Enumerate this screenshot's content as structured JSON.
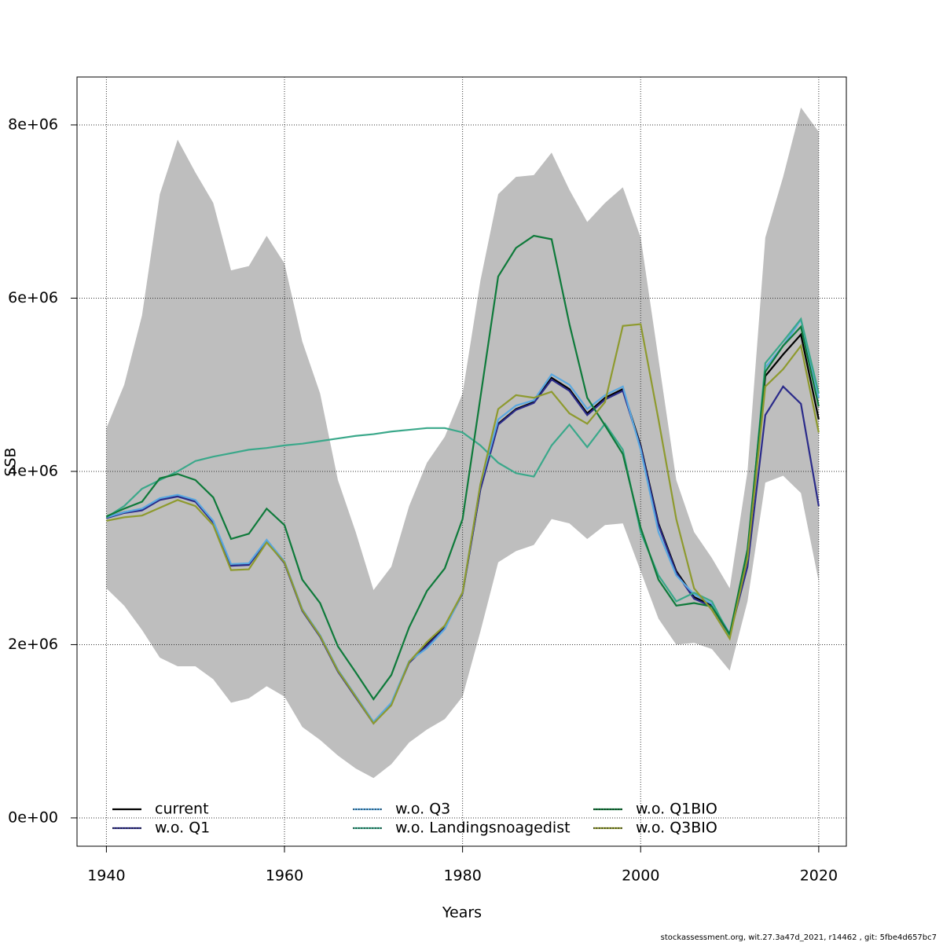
{
  "chart_data": {
    "type": "line",
    "xlabel": "Years",
    "ylabel": "SSB",
    "footer": "stockassessment.org, wit.27.3a47d_2021, r14462 , git: 5fbe4d657bc7",
    "x": [
      1940,
      1942,
      1944,
      1946,
      1948,
      1950,
      1952,
      1954,
      1956,
      1958,
      1960,
      1962,
      1964,
      1966,
      1968,
      1970,
      1972,
      1974,
      1976,
      1978,
      1980,
      1982,
      1984,
      1986,
      1988,
      1990,
      1992,
      1994,
      1996,
      1998,
      2000,
      2002,
      2004,
      2006,
      2008,
      2010,
      2012,
      2014,
      2016,
      2018,
      2020
    ],
    "xlim": [
      1936.7,
      2023.1
    ],
    "xticks": [
      1940,
      1960,
      1980,
      2000,
      2020
    ],
    "ylim": [
      -327000,
      8553000
    ],
    "yticks": [
      {
        "value": 0,
        "label": "0e+00"
      },
      {
        "value": 2000000,
        "label": "2e+06"
      },
      {
        "value": 4000000,
        "label": "4e+06"
      },
      {
        "value": 6000000,
        "label": "6e+06"
      },
      {
        "value": 8000000,
        "label": "8e+06"
      }
    ],
    "grid": true,
    "band": {
      "color": "#bebebe",
      "upper": [
        4500000.0,
        5000000.0,
        5800000.0,
        7200000.0,
        7830000.0,
        7450000.0,
        7100000.0,
        6320000.0,
        6370000.0,
        6720000.0,
        6400000.0,
        5500000.0,
        4900000.0,
        3900000.0,
        3300000.0,
        2630000.0,
        2900000.0,
        3600000.0,
        4100000.0,
        4400000.0,
        4900000.0,
        6200000.0,
        7200000.0,
        7400000.0,
        7420000.0,
        7680000.0,
        7250000.0,
        6880000.0,
        7100000.0,
        7280000.0,
        6700000.0,
        5300000.0,
        3900000.0,
        3300000.0,
        3000000.0,
        2650000.0,
        4000000.0,
        6700000.0,
        7400000.0,
        8200000.0,
        7920000.0
      ],
      "lower": [
        2650000.0,
        2450000.0,
        2170000.0,
        1850000.0,
        1750000.0,
        1750000.0,
        1600000.0,
        1330000.0,
        1380000.0,
        1520000.0,
        1400000.0,
        1050000.0,
        900000.0,
        720000.0,
        570000.0,
        460000.0,
        620000.0,
        870000.0,
        1020000.0,
        1140000.0,
        1400000.0,
        2150000.0,
        2950000.0,
        3080000.0,
        3150000.0,
        3450000.0,
        3400000.0,
        3220000.0,
        3380000.0,
        3400000.0,
        2850000.0,
        2300000.0,
        2000000.0,
        2020000.0,
        1950000.0,
        1700000.0,
        2500000.0,
        3870000.0,
        3950000.0,
        3750000.0,
        2730000.0
      ]
    },
    "series": [
      {
        "name": "current",
        "color": "#000000",
        "values": [
          3470000.0,
          3530000.0,
          3560000.0,
          3680000.0,
          3720000.0,
          3660000.0,
          3420000.0,
          2920000.0,
          2930000.0,
          3200000.0,
          2950000.0,
          2400000.0,
          2100000.0,
          1700000.0,
          1400000.0,
          1100000.0,
          1320000.0,
          1800000.0,
          2000000.0,
          2200000.0,
          2600000.0,
          3800000.0,
          4550000.0,
          4720000.0,
          4800000.0,
          5080000.0,
          4950000.0,
          4670000.0,
          4850000.0,
          4950000.0,
          4300000.0,
          3400000.0,
          2850000.0,
          2550000.0,
          2450000.0,
          2120000.0,
          3000000.0,
          5100000.0,
          5350000.0,
          5580000.0,
          4600000.0
        ]
      },
      {
        "name": "w.o. Q1",
        "color": "#2b2b8a",
        "values": [
          3460000.0,
          3520000.0,
          3550000.0,
          3670000.0,
          3710000.0,
          3650000.0,
          3410000.0,
          2910000.0,
          2920000.0,
          3190000.0,
          2940000.0,
          2390000.0,
          2090000.0,
          1690000.0,
          1390000.0,
          1090000.0,
          1310000.0,
          1790000.0,
          1990000.0,
          2190000.0,
          2590000.0,
          3790000.0,
          4540000.0,
          4710000.0,
          4790000.0,
          5060000.0,
          4930000.0,
          4650000.0,
          4830000.0,
          4930000.0,
          4280000.0,
          3380000.0,
          2830000.0,
          2530000.0,
          2440000.0,
          2110000.0,
          2900000.0,
          4650000.0,
          4980000.0,
          4780000.0,
          3600000.0
        ]
      },
      {
        "name": "w.o. Q3",
        "color": "#5aa8e0",
        "values": [
          3470000.0,
          3530000.0,
          3570000.0,
          3690000.0,
          3730000.0,
          3670000.0,
          3430000.0,
          2930000.0,
          2940000.0,
          3210000.0,
          2960000.0,
          2410000.0,
          2110000.0,
          1710000.0,
          1410000.0,
          1110000.0,
          1330000.0,
          1810000.0,
          1960000.0,
          2180000.0,
          2600000.0,
          3850000.0,
          4600000.0,
          4760000.0,
          4820000.0,
          5120000.0,
          5000000.0,
          4720000.0,
          4880000.0,
          4980000.0,
          4250000.0,
          3300000.0,
          2800000.0,
          2580000.0,
          2470000.0,
          2130000.0,
          3050000.0,
          5200000.0,
          5450000.0,
          5750000.0,
          4850000.0
        ]
      },
      {
        "name": "w.o. Landingsnoagedist",
        "color": "#3aa88a",
        "values": [
          3470000.0,
          3600000.0,
          3800000.0,
          3900000.0,
          4000000.0,
          4120000.0,
          4170000.0,
          4210000.0,
          4250000.0,
          4270000.0,
          4300000.0,
          4320000.0,
          4350000.0,
          4380000.0,
          4410000.0,
          4430000.0,
          4460000.0,
          4480000.0,
          4500000.0,
          4500000.0,
          4450000.0,
          4300000.0,
          4100000.0,
          3980000.0,
          3940000.0,
          4300000.0,
          4540000.0,
          4280000.0,
          4550000.0,
          4250000.0,
          3300000.0,
          2800000.0,
          2500000.0,
          2600000.0,
          2500000.0,
          2100000.0,
          3000000.0,
          5250000.0,
          5500000.0,
          5760000.0,
          4900000.0
        ]
      },
      {
        "name": "w.o. Q1BIO",
        "color": "#0e7a3a",
        "values": [
          3480000.0,
          3570000.0,
          3650000.0,
          3920000.0,
          3970000.0,
          3900000.0,
          3700000.0,
          3220000.0,
          3280000.0,
          3570000.0,
          3380000.0,
          2750000.0,
          2480000.0,
          1980000.0,
          1680000.0,
          1370000.0,
          1650000.0,
          2200000.0,
          2620000.0,
          2880000.0,
          3450000.0,
          4850000.0,
          6250000.0,
          6580000.0,
          6720000.0,
          6680000.0,
          5700000.0,
          4850000.0,
          4530000.0,
          4200000.0,
          3350000.0,
          2750000.0,
          2450000.0,
          2480000.0,
          2440000.0,
          2120000.0,
          3100000.0,
          5150000.0,
          5450000.0,
          5670000.0,
          4750000.0
        ]
      },
      {
        "name": "w.o. Q3BIO",
        "color": "#8e9a2e",
        "values": [
          3430000.0,
          3470000.0,
          3490000.0,
          3580000.0,
          3670000.0,
          3600000.0,
          3380000.0,
          2860000.0,
          2870000.0,
          3180000.0,
          2950000.0,
          2400000.0,
          2100000.0,
          1700000.0,
          1400000.0,
          1090000.0,
          1300000.0,
          1800000.0,
          2030000.0,
          2220000.0,
          2600000.0,
          3850000.0,
          4720000.0,
          4880000.0,
          4850000.0,
          4920000.0,
          4670000.0,
          4550000.0,
          4800000.0,
          5680000.0,
          5700000.0,
          4600000.0,
          3450000.0,
          2650000.0,
          2400000.0,
          2070000.0,
          3000000.0,
          4980000.0,
          5180000.0,
          5450000.0,
          4450000.0
        ]
      }
    ]
  }
}
